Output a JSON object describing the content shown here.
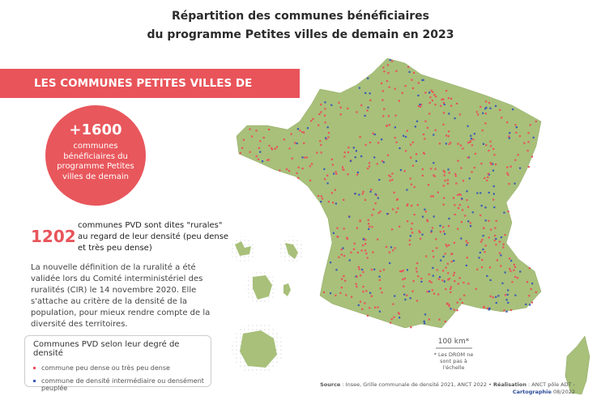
{
  "title": {
    "line1": "Répartition des communes bénéficiaires",
    "line2": "du programme Petites villes de demain en 2023"
  },
  "banner": "LES COMMUNES PETITES VILLES DE DEMAIN",
  "highlight": {
    "value": "+1600",
    "text": "communes bénéficiaires du programme Petites villes de demain"
  },
  "rural": {
    "value": "1202",
    "text": "communes PVD sont dites \"rurales\" au regard de leur densité (peu dense et très peu dense)"
  },
  "paragraph": "La nouvelle définition de la ruralité a été validée lors du Comité interministériel des ruralités (CIR) le 14 novembre 2020. Elle s'attache au critère de la densité de la population, pour mieux rendre compte de la diversité des territoires.",
  "legend": {
    "title": "Communes PVD selon leur degré de densité",
    "items": [
      {
        "label": "commune peu dense ou très peu dense",
        "color": "#e8545a"
      },
      {
        "label": "commune de densité intermédiaire ou densément peuplée",
        "color": "#3b5bb5"
      }
    ]
  },
  "map": {
    "land_color": "#a8c07a",
    "scale_label": "100 km*",
    "scale_note": "* Les DROM ne sont pas à l'échelle"
  },
  "source": {
    "label1": "Source",
    "text1": " : Insee, Grille communale de densité 2021, ANCT 2022 • ",
    "label2": "Réalisation",
    "text2": " : ANCT pôle ADT -",
    "label3": "Cartographie",
    "text3": " 08/2022"
  }
}
